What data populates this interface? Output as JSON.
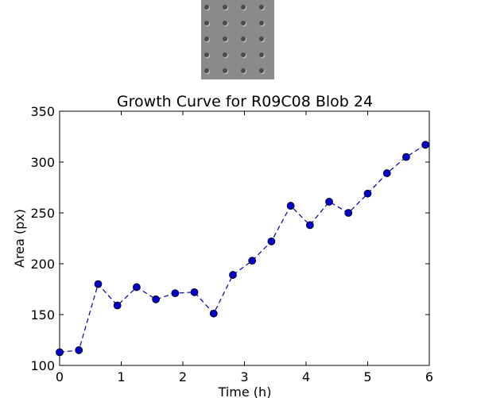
{
  "thumbnail": {
    "background_color": "#8a8a8a",
    "dot_color": "#4a4a4a",
    "rows": 5,
    "cols": 4
  },
  "chart_data": {
    "type": "line",
    "title": "Growth Curve for R09C08 Blob 24",
    "xlabel": "Time (h)",
    "ylabel": "Area (px)",
    "xlim": [
      0,
      6
    ],
    "ylim": [
      100,
      350
    ],
    "xticks": [
      "0",
      "1",
      "2",
      "3",
      "4",
      "5",
      "6"
    ],
    "yticks": [
      "100",
      "150",
      "200",
      "250",
      "300",
      "350"
    ],
    "grid": false,
    "line_style": "dashed",
    "marker": "circle",
    "line_color": "#0000aa",
    "marker_color": "#0000cc",
    "series": [
      {
        "x": [
          0.0,
          0.3125,
          0.625,
          0.9375,
          1.25,
          1.5625,
          1.875,
          2.1875,
          2.5,
          2.8125,
          3.125,
          3.4375,
          3.75,
          4.0625,
          4.375,
          4.6875,
          5.0,
          5.3125,
          5.625,
          5.9375
        ],
        "values": [
          113,
          115,
          180,
          159,
          177,
          165,
          171,
          172,
          151,
          189,
          203,
          222,
          257,
          238,
          261,
          250,
          269,
          289,
          305,
          317
        ]
      }
    ]
  }
}
